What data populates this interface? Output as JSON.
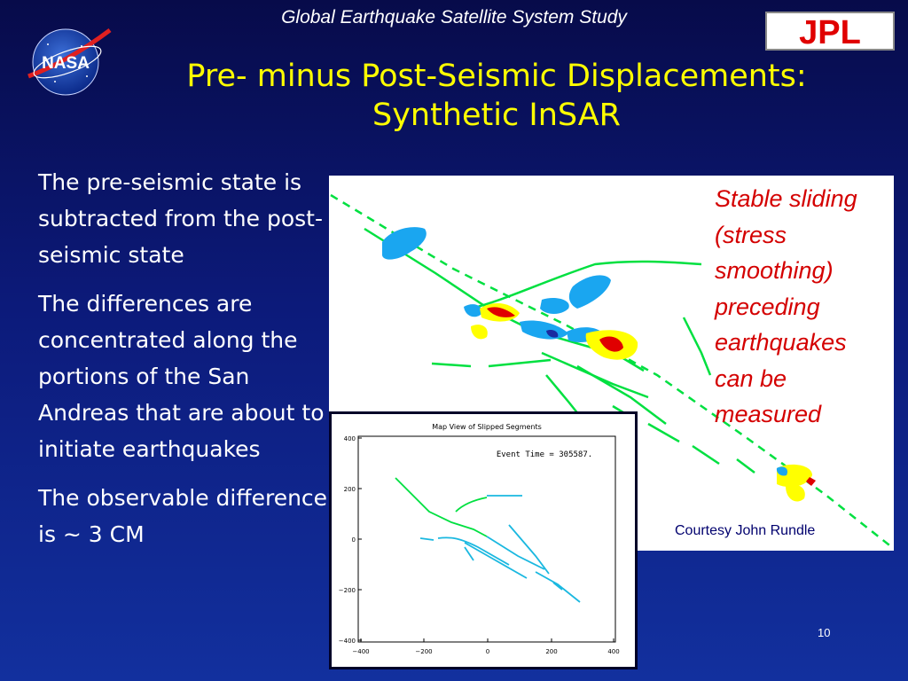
{
  "header": {
    "subtitle": "Global Earthquake Satellite System Study",
    "nasa_logo_text": "NASA",
    "jpl_logo_text": "JPL"
  },
  "title": {
    "line1": "Pre-  minus  Post-Seismic Displacements:",
    "line2": "Synthetic InSAR"
  },
  "bullets": [
    "The pre-seismic state is subtracted from the post-seismic state",
    "The differences are concentrated along the portions of the San Andreas that are about to initiate earthquakes",
    "The observable difference is ~ 3 CM"
  ],
  "insar_figure": {
    "annotation_lines": [
      "Stable sliding",
      "(stress",
      "smoothing)",
      "preceding",
      "earthquakes",
      "can be",
      "measured"
    ],
    "credit": "Courtesy John Rundle"
  },
  "slip_map": {
    "title": "Map View of Slipped Segments",
    "event_time": "Event Time = 305587.",
    "x_ticks": [
      "−400",
      "−200",
      "0",
      "200",
      "400"
    ],
    "y_ticks": [
      "400",
      "200",
      "0",
      "−200",
      "−400"
    ]
  },
  "slide_number": "10",
  "colors": {
    "background": "#0c1a7a",
    "title": "#ffff00",
    "body_text": "#ffffff",
    "annotation": "#d40000",
    "fault_trace": "#00e040",
    "displacement_blue": "#1aa6f0",
    "displacement_yellow": "#ffff00",
    "displacement_red": "#e00000"
  }
}
